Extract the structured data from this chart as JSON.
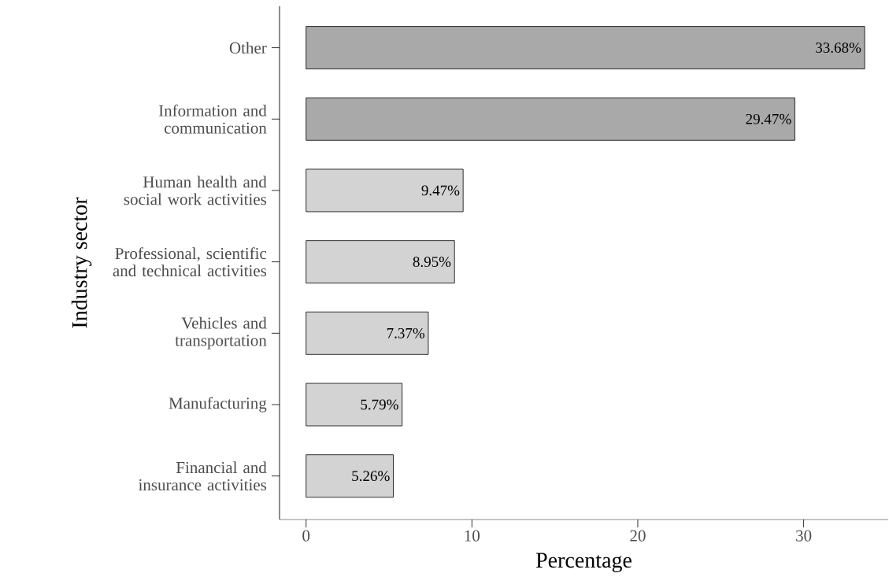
{
  "chart_data": {
    "type": "bar",
    "orientation": "horizontal",
    "xlabel": "Percentage",
    "ylabel": "Industry sector",
    "categories": [
      "Other",
      "Information and communication",
      "Human health and social work activities",
      "Professional, scientific and technical activities",
      "Vehicles and transportation",
      "Manufacturing",
      "Financial and insurance activities"
    ],
    "values": [
      33.68,
      29.47,
      9.47,
      8.95,
      7.37,
      5.79,
      5.26
    ],
    "colors": [
      "#a9a9a9",
      "#a9a9a9",
      "#d3d3d3",
      "#d3d3d3",
      "#d3d3d3",
      "#d3d3d3",
      "#d3d3d3"
    ],
    "value_labels": [
      "33.68%",
      "29.47%",
      "9.47%",
      "8.95%",
      "7.37%",
      "5.79%",
      "5.26%"
    ],
    "xlim": [
      -1.6,
      35.1
    ],
    "xticks": [
      0,
      10,
      20,
      30
    ]
  }
}
